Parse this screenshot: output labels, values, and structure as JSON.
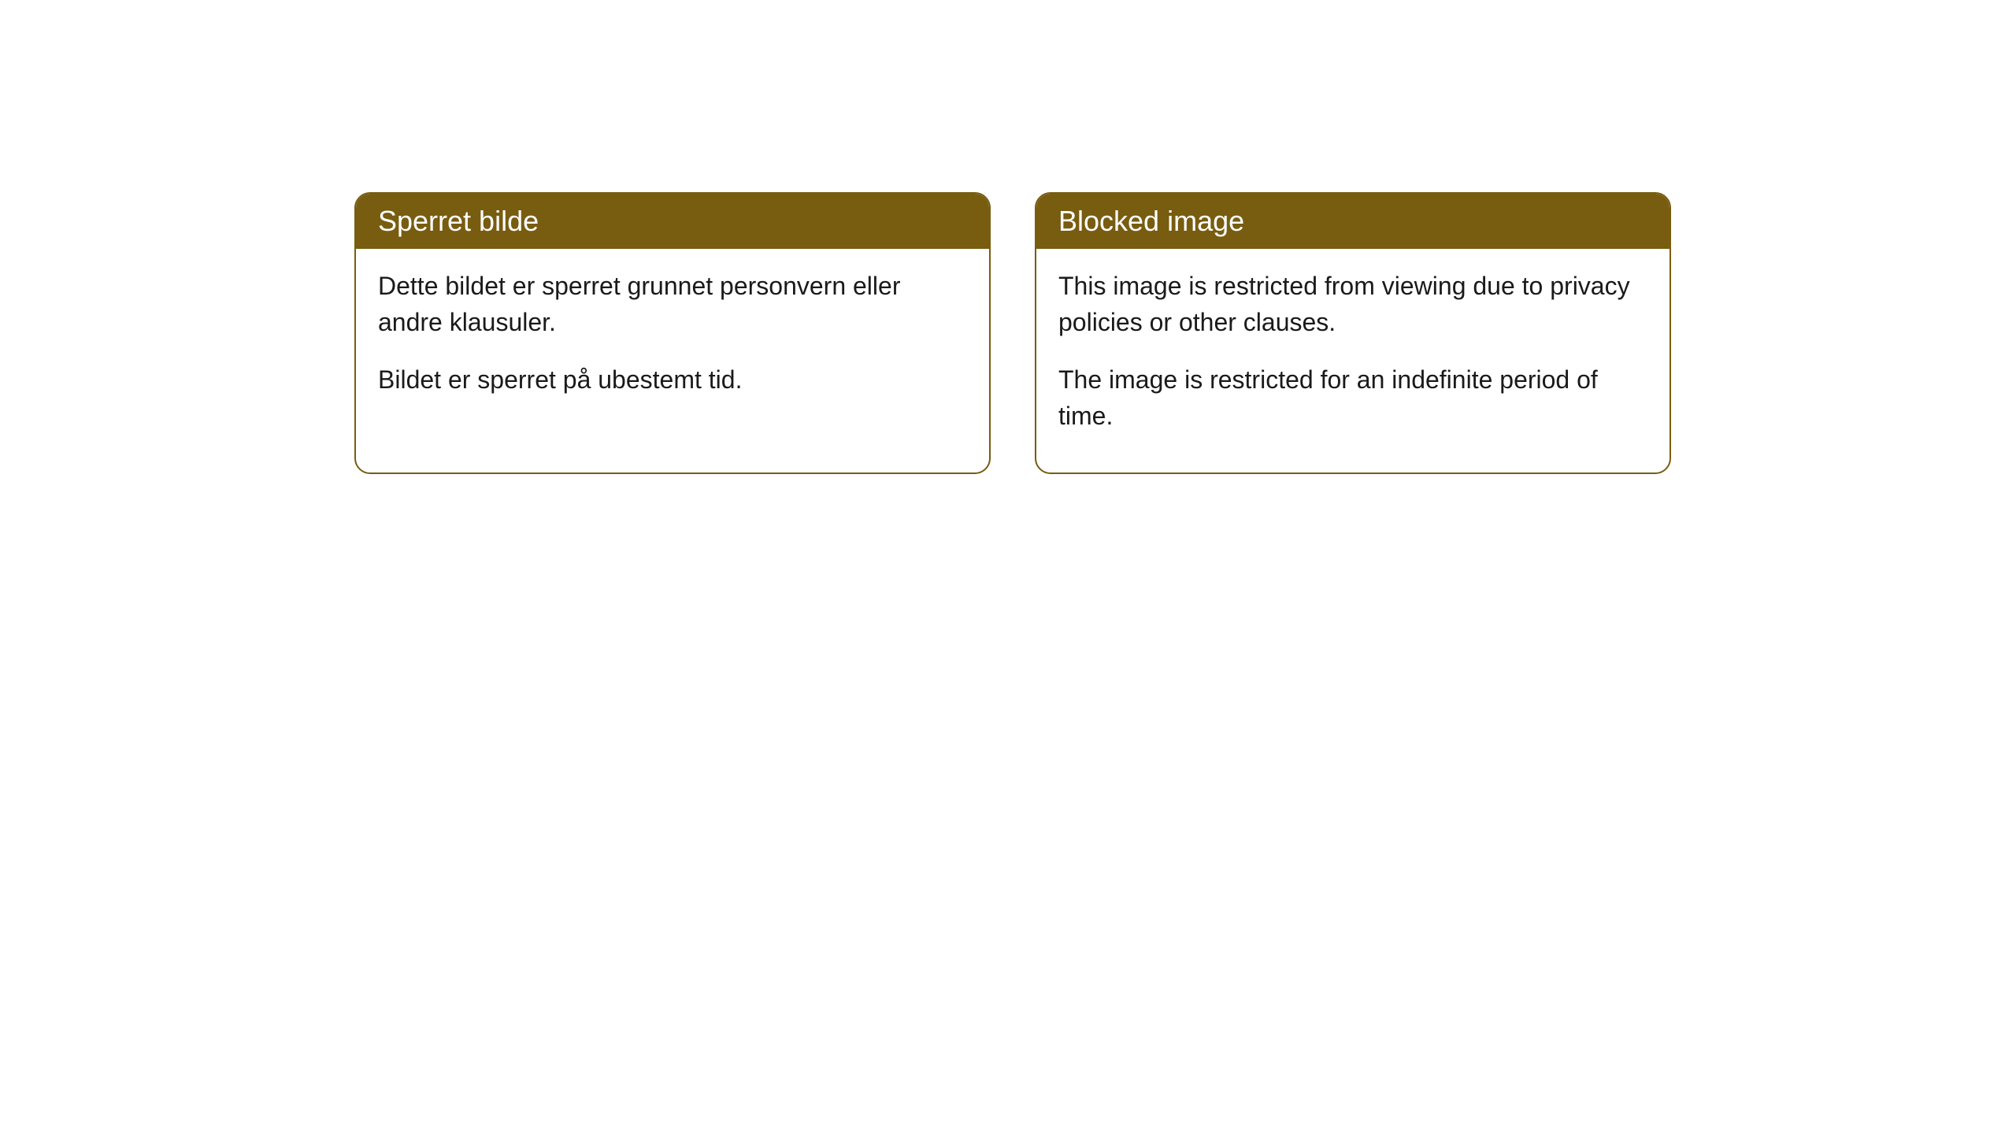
{
  "cards": [
    {
      "header": "Sperret bilde",
      "paragraphs": [
        "Dette bildet er sperret grunnet personvern eller andre klausuler.",
        "Bildet er sperret på ubestemt tid."
      ]
    },
    {
      "header": "Blocked image",
      "paragraphs": [
        "This image is restricted from viewing due to privacy policies or other clauses.",
        "The image is restricted for an indefinite period of time."
      ]
    }
  ],
  "style": {
    "header_bg_color": "#785c10",
    "header_text_color": "#ffffff",
    "border_color": "#785c10",
    "body_text_color": "#1a1a1a",
    "background_color": "#ffffff",
    "border_radius": 20,
    "header_fontsize": 36,
    "body_fontsize": 32
  }
}
